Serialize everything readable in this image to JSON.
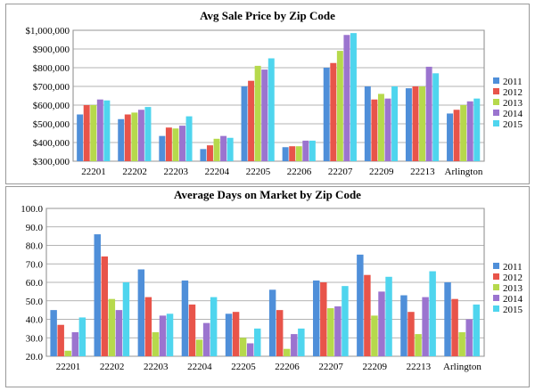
{
  "chart_data": [
    {
      "type": "bar",
      "title": "Avg Sale Price by Zip Code",
      "categories": [
        "22201",
        "22202",
        "22203",
        "22204",
        "22205",
        "22206",
        "22207",
        "22209",
        "22213",
        "Arlington"
      ],
      "ylim": [
        300000,
        1000000
      ],
      "yticks": [
        300000,
        400000,
        500000,
        600000,
        700000,
        800000,
        900000,
        1000000
      ],
      "ytick_labels": [
        "$300,000",
        "$400,000",
        "$500,000",
        "$600,000",
        "$700,000",
        "$800,000",
        "$900,000",
        "$1,000,000"
      ],
      "grid": true,
      "legend": "right",
      "series": [
        {
          "name": "2011",
          "color": "#4f8fd9",
          "values": [
            550000,
            525000,
            435000,
            365000,
            700000,
            375000,
            800000,
            700000,
            690000,
            555000
          ]
        },
        {
          "name": "2012",
          "color": "#e8544a",
          "values": [
            600000,
            550000,
            480000,
            385000,
            730000,
            380000,
            825000,
            630000,
            700000,
            575000
          ]
        },
        {
          "name": "2013",
          "color": "#b6d94c",
          "values": [
            600000,
            560000,
            475000,
            420000,
            810000,
            380000,
            890000,
            660000,
            700000,
            600000
          ]
        },
        {
          "name": "2014",
          "color": "#9b74cf",
          "values": [
            630000,
            575000,
            490000,
            435000,
            790000,
            410000,
            975000,
            635000,
            805000,
            620000
          ]
        },
        {
          "name": "2015",
          "color": "#4fd5ee",
          "values": [
            625000,
            590000,
            540000,
            425000,
            850000,
            410000,
            985000,
            700000,
            770000,
            635000
          ]
        }
      ]
    },
    {
      "type": "bar",
      "title": "Average Days on Market by Zip Code",
      "categories": [
        "22201",
        "22202",
        "22203",
        "22204",
        "22205",
        "22206",
        "22207",
        "22209",
        "22213",
        "Arlington"
      ],
      "ylim": [
        20,
        100
      ],
      "yticks": [
        20,
        30,
        40,
        50,
        60,
        70,
        80,
        90,
        100
      ],
      "ytick_labels": [
        "20.0",
        "30.0",
        "40.0",
        "50.0",
        "60.0",
        "70.0",
        "80.0",
        "90.0",
        "100.0"
      ],
      "grid": true,
      "legend": "right",
      "series": [
        {
          "name": "2011",
          "color": "#4f8fd9",
          "values": [
            45,
            86,
            67,
            61,
            43,
            56,
            61,
            75,
            53,
            60
          ]
        },
        {
          "name": "2012",
          "color": "#e8544a",
          "values": [
            37,
            74,
            52,
            48,
            44,
            45,
            60,
            64,
            44,
            51
          ]
        },
        {
          "name": "2013",
          "color": "#b6d94c",
          "values": [
            23,
            51,
            33,
            29,
            30,
            24,
            46,
            42,
            32,
            33
          ]
        },
        {
          "name": "2014",
          "color": "#9b74cf",
          "values": [
            33,
            45,
            42,
            38,
            27,
            32,
            47,
            55,
            52,
            40
          ]
        },
        {
          "name": "2015",
          "color": "#4fd5ee",
          "values": [
            41,
            60,
            43,
            52,
            35,
            35,
            58,
            63,
            66,
            48
          ]
        }
      ]
    }
  ]
}
